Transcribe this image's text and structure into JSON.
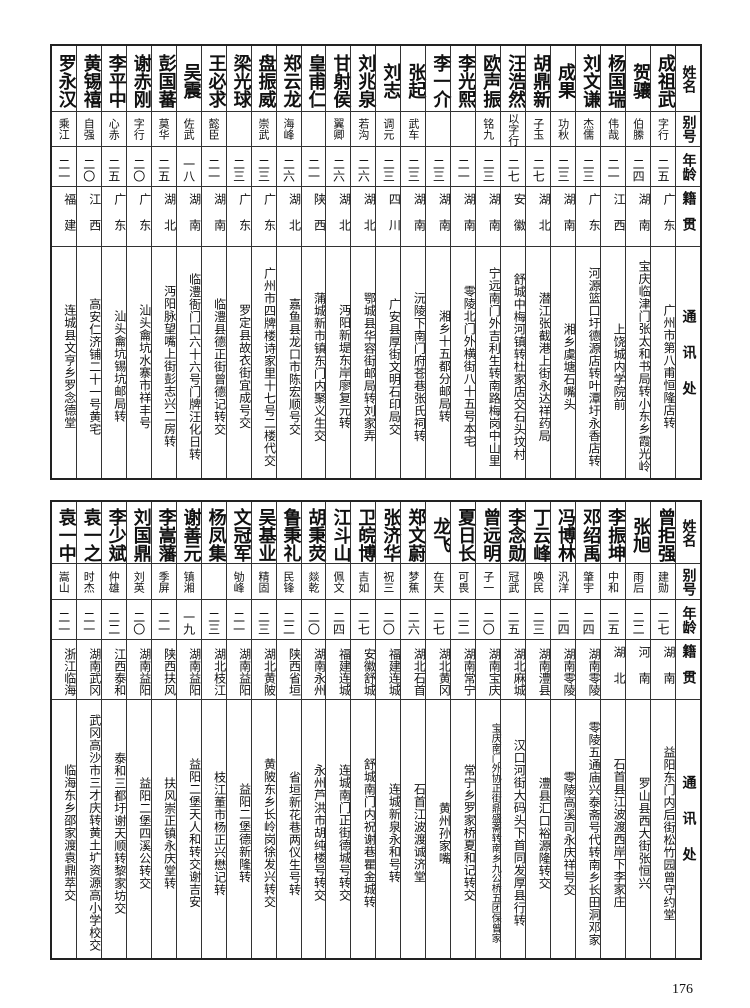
{
  "page_number": "176",
  "header": [
    "姓名",
    "别号",
    "年龄",
    "籍贯",
    "通讯处"
  ],
  "tables": [
    {
      "rows": [
        [
          "成祖武",
          "字行",
          "二五",
          "广东",
          "广州市第八甫恒隆店转"
        ],
        [
          "贺骧",
          "伯縢",
          "二四",
          "湖南",
          "宝庆临津门张太和书局转小东乡霞光岭"
        ],
        [
          "杨国瑞",
          "伟哉",
          "二一",
          "江西",
          "上饶城内学院前"
        ],
        [
          "刘文谦",
          "杰儒",
          "二三",
          "广东",
          "河源篮口圩德源店转叶潭圩永香店转"
        ],
        [
          "成果",
          "功秋",
          "二三",
          "湖南",
          "湘乡虞塘石嘴头"
        ],
        [
          "胡鼎新",
          "子玉",
          "二七",
          "湖北",
          "潜江张截港上街永达祥药局"
        ],
        [
          "汪浩然",
          "以字行",
          "二七",
          "安徽",
          "舒城中梅河镇转杜家店交石头坟村"
        ],
        [
          "欧声振",
          "铭九",
          "二三",
          "湖南",
          "宁远南门外吉利生转南路梅岗中山里"
        ],
        [
          "李光熙",
          "",
          "二一",
          "湖南",
          "零陵北门外横街八十五号本宅"
        ],
        [
          "李一介",
          "",
          "二三",
          "湖南",
          "湘乡十五都分邮局转"
        ],
        [
          "张起",
          "武车",
          "二三",
          "湖南",
          "沅陵下南门府苍巷张氏祠转"
        ],
        [
          "刘志",
          "调元",
          "二三",
          "四川",
          "广安县厚街文明石印局交"
        ],
        [
          "刘兆泉",
          "若沟",
          "二六",
          "湖北",
          "鄂城县华容街邮局转刘家弄"
        ],
        [
          "甘射侯",
          "翼卿",
          "二六",
          "湖北",
          "沔阳新堤东岸廖复元转"
        ],
        [
          "皇甫仁",
          "",
          "二一",
          "陕西",
          "蒲城新市镇东门内聚义生交"
        ],
        [
          "郑云龙",
          "海峰",
          "二六",
          "湖北",
          "嘉鱼县龙口市陈宏顺号交"
        ],
        [
          "盘振威",
          "崇武",
          "二三",
          "广东",
          "广州市四牌楼诗家里十七号二楼代交"
        ],
        [
          "梁光球",
          "",
          "二三",
          "广东",
          "罗定县故衣街宜成号交"
        ],
        [
          "王必求",
          "懿臣",
          "二一",
          "湖南",
          "临澧县德正街曾德记转交"
        ],
        [
          "吴震",
          "佐武",
          "一八",
          "湖南",
          "临澧衙门口六十六号门牌汪化日转"
        ],
        [
          "彭国蕃",
          "莫华",
          "二五",
          "湖北",
          "沔阳脉望嘴上街彭志兴二房转"
        ],
        [
          "谢赤刚",
          "字行",
          "二〇",
          "广东",
          "汕头龠坑水寨市祥丰号"
        ],
        [
          "李平中",
          "心赤",
          "二五",
          "广东",
          "汕头龠坑锡坑邮局转"
        ],
        [
          "黄锡禧",
          "自强",
          "二〇",
          "江西",
          "高安仁济铺二十一号黄宅"
        ],
        [
          "罗永汉",
          "乘江",
          "二一",
          "福建",
          "连城县文亨乡罗念德堂"
        ]
      ]
    },
    {
      "rows": [
        [
          "曾拒强",
          "建勋",
          "二七",
          "湖南",
          "益阳东门内后街松竹园曾守约堂"
        ],
        [
          "张旭",
          "雨后",
          "二二",
          "河南",
          "罗山县西大街张恒兴"
        ],
        [
          "李振坤",
          "中和",
          "二五",
          "湖北",
          "石首县江波渡西岸下李家庄"
        ],
        [
          "邓绍禹",
          "肇宇",
          "二四",
          "湖南零陵",
          "零陵五通庙兴泰斋号代转南乡长田洞邓家"
        ],
        [
          "冯博林",
          "汎洋",
          "二四",
          "湖南零陵",
          "零陵高溪司永庆祥号交"
        ],
        [
          "丁云峰",
          "唤民",
          "二三",
          "湖南澧县",
          "澧县汇口裕源隆转交"
        ],
        [
          "李念勋",
          "冠武",
          "二五",
          "湖北麻城",
          "汉口河街大码头下首同发厚县行转"
        ],
        [
          "曾远明",
          "子一",
          "二〇",
          "湖南宝庆",
          "宝庆南门外协正街鼎盛斋转南乡九公桥五团保曾家"
        ],
        [
          "夏日长",
          "可畏",
          "二二",
          "湖南常宁",
          "常宁乡罗家桥夏和记转交"
        ],
        [
          "龙飞",
          "在天",
          "二七",
          "湖北黄冈",
          "黄州孙家嘴"
        ],
        [
          "郑文蔚",
          "梦蕉",
          "二六",
          "湖北石首",
          "石首江波渡诚济堂"
        ],
        [
          "张济华",
          "祝三",
          "二〇",
          "福建连城",
          "连城新泉永和号转"
        ],
        [
          "卫皖博",
          "吉如",
          "二七",
          "安徽舒城",
          "舒城南门内祝谢巷瞿金城转"
        ],
        [
          "江斗山",
          "佩文",
          "二四",
          "福建连城",
          "连城南门正街德城号转交"
        ],
        [
          "胡秉荧",
          "燚乾",
          "二〇",
          "湖南永州",
          "永州芦洪市胡纯楼号转交"
        ],
        [
          "鲁秉礼",
          "民锋",
          "二二",
          "陕西省垣",
          "省垣新花巷两仪生号转"
        ],
        [
          "吴基业",
          "精固",
          "二三",
          "湖北黄陂",
          "黄陂东乡长岭岗徐发兴转交"
        ],
        [
          "文冠军",
          "劬峰",
          "二一",
          "湖南益阳",
          "益阳二堡德新隆转"
        ],
        [
          "杨凤集",
          "",
          "二三",
          "湖北枝江",
          "枝江董市杨正兴懋记转"
        ],
        [
          "谢善元",
          "镇湘",
          "一九",
          "湖南益阳",
          "益阳二堡天人和转交谢吉安"
        ],
        [
          "李嵩藩",
          "季屏",
          "二一",
          "陕西扶风",
          "扶风崇正镇永庆堂转"
        ],
        [
          "刘国鼎",
          "刘英",
          "二〇",
          "湖南益阳",
          "益阳二堡四溪公转交"
        ],
        [
          "李少斌",
          "仲雄",
          "二二",
          "江西泰和",
          "泰和三都圩谢天顺转黎家坊交"
        ],
        [
          "袁一之",
          "时杰",
          "二一",
          "湖南武冈",
          "武冈高沙市三才庆转黄土圹资源高小学校交"
        ],
        [
          "袁一中",
          "嵩山",
          "二一",
          "浙江临海",
          "临海东乡邵家渡袁鼎萃交"
        ]
      ]
    }
  ]
}
